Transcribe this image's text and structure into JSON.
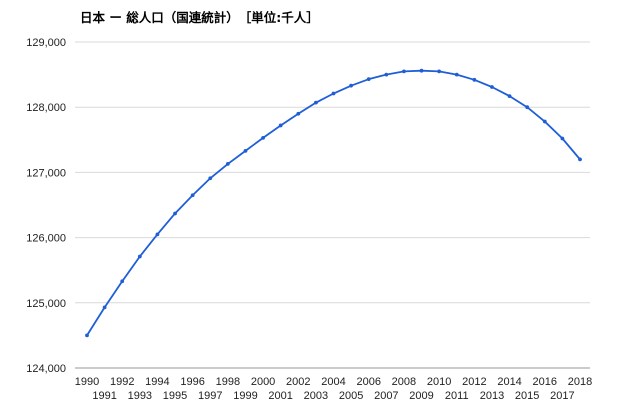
{
  "chart_data": {
    "type": "line",
    "title": "日本 ー 総人口（国連統計）　［単位:千人］",
    "xlabel": "",
    "ylabel": "",
    "x": [
      1990,
      1991,
      1992,
      1993,
      1994,
      1995,
      1996,
      1997,
      1998,
      1999,
      2000,
      2001,
      2002,
      2003,
      2004,
      2005,
      2006,
      2007,
      2008,
      2009,
      2010,
      2011,
      2012,
      2013,
      2014,
      2015,
      2016,
      2017,
      2018
    ],
    "series": [
      {
        "values": [
          124500,
          124930,
          125330,
          125710,
          126050,
          126370,
          126650,
          126910,
          127130,
          127330,
          127530,
          127720,
          127900,
          128070,
          128210,
          128330,
          128430,
          128500,
          128550,
          128560,
          128550,
          128500,
          128420,
          128310,
          128170,
          128000,
          127780,
          127520,
          127200
        ],
        "color": "#1f5fd6"
      }
    ],
    "yticks": [
      "124,000",
      "125,000",
      "126,000",
      "127,000",
      "128,000",
      "129,000"
    ],
    "ylim": [
      124000,
      129000
    ],
    "xlim": [
      1990,
      2018
    ],
    "grid": true,
    "legend": "none"
  }
}
